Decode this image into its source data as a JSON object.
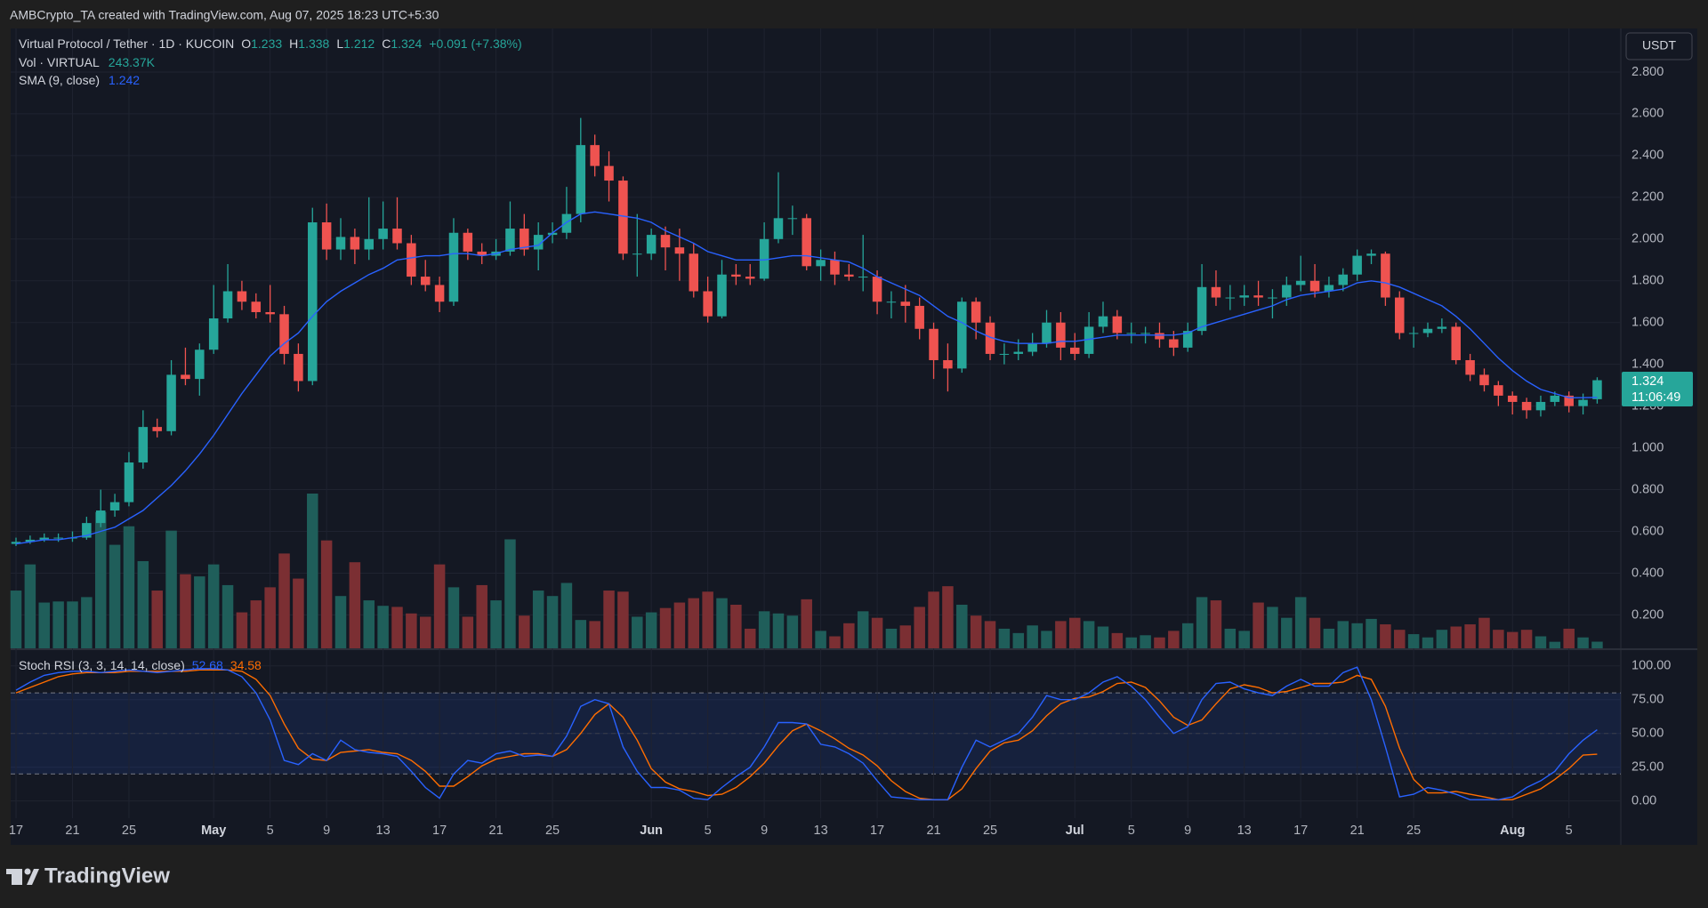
{
  "header": "AMBCrypto_TA created with TradingView.com, Aug 07, 2025 18:23 UTC+5:30",
  "footer": "TradingView",
  "chart_data": {
    "type": "candlestick",
    "legend": {
      "symbol": "Virtual Protocol / Tether · 1D · KUCOIN",
      "o": "O",
      "h": "H",
      "l": "L",
      "c": "C",
      "change": "+0.091 (+7.38%)",
      "vol": "Vol · VIRTUAL",
      "vol_value": "243.37K",
      "sma": "SMA (9, close)",
      "stoch": "Stoch RSI (3, 3, 14, 14, close)"
    },
    "currency": "USDT",
    "countdown": "11:06:49",
    "colors": {
      "up": "#26a69a",
      "down": "#ef5350",
      "vol_up": "#1f5e5a",
      "vol_down": "#7b2f33",
      "sma": "#2962ff",
      "k": "#2962ff",
      "d": "#ff6d00"
    },
    "categories": [
      "17",
      null,
      null,
      null,
      "21",
      null,
      null,
      null,
      "25",
      null,
      null,
      null,
      null,
      null,
      "May",
      null,
      null,
      null,
      "5",
      null,
      null,
      null,
      "9",
      null,
      null,
      null,
      "13",
      null,
      null,
      null,
      "17",
      null,
      null,
      null,
      "21",
      null,
      null,
      null,
      "25",
      null,
      null,
      null,
      null,
      null,
      null,
      "Jun",
      null,
      null,
      null,
      "5",
      null,
      null,
      null,
      "9",
      null,
      null,
      null,
      "13",
      null,
      null,
      null,
      "17",
      null,
      null,
      null,
      "21",
      null,
      null,
      null,
      "25",
      null,
      null,
      null,
      null,
      null,
      "Jul",
      null,
      null,
      null,
      "5",
      null,
      null,
      null,
      "9",
      null,
      null,
      null,
      "13",
      null,
      null,
      null,
      "17",
      null,
      null,
      null,
      "21",
      null,
      null,
      null,
      "25",
      null,
      null,
      null,
      null,
      null,
      null,
      "Aug",
      null,
      null,
      null,
      "5",
      null,
      null
    ],
    "ohlc": [
      [
        0.54,
        0.57,
        0.53,
        0.55
      ],
      [
        0.55,
        0.58,
        0.54,
        0.56
      ],
      [
        0.56,
        0.59,
        0.55,
        0.57
      ],
      [
        0.57,
        0.59,
        0.55,
        0.57
      ],
      [
        0.57,
        0.6,
        0.55,
        0.57
      ],
      [
        0.57,
        0.67,
        0.56,
        0.64
      ],
      [
        0.64,
        0.8,
        0.62,
        0.7
      ],
      [
        0.7,
        0.78,
        0.67,
        0.74
      ],
      [
        0.74,
        0.98,
        0.72,
        0.93
      ],
      [
        0.93,
        1.18,
        0.9,
        1.1
      ],
      [
        1.1,
        1.14,
        1.05,
        1.08
      ],
      [
        1.08,
        1.42,
        1.06,
        1.35
      ],
      [
        1.35,
        1.48,
        1.3,
        1.33
      ],
      [
        1.33,
        1.5,
        1.25,
        1.47
      ],
      [
        1.47,
        1.78,
        1.45,
        1.62
      ],
      [
        1.62,
        1.88,
        1.6,
        1.75
      ],
      [
        1.75,
        1.8,
        1.66,
        1.7
      ],
      [
        1.7,
        1.74,
        1.62,
        1.65
      ],
      [
        1.65,
        1.78,
        1.6,
        1.64
      ],
      [
        1.64,
        1.68,
        1.4,
        1.45
      ],
      [
        1.45,
        1.5,
        1.27,
        1.32
      ],
      [
        1.32,
        2.15,
        1.3,
        2.08
      ],
      [
        2.08,
        2.17,
        1.9,
        1.95
      ],
      [
        1.95,
        2.1,
        1.9,
        2.01
      ],
      [
        2.01,
        2.05,
        1.88,
        1.95
      ],
      [
        1.95,
        2.2,
        1.9,
        2.0
      ],
      [
        2.0,
        2.18,
        1.95,
        2.05
      ],
      [
        2.05,
        2.2,
        1.95,
        1.98
      ],
      [
        1.98,
        2.02,
        1.78,
        1.82
      ],
      [
        1.82,
        1.9,
        1.75,
        1.78
      ],
      [
        1.78,
        1.82,
        1.65,
        1.7
      ],
      [
        1.7,
        2.1,
        1.68,
        2.03
      ],
      [
        2.03,
        2.05,
        1.9,
        1.94
      ],
      [
        1.94,
        1.98,
        1.88,
        1.92
      ],
      [
        1.92,
        2.0,
        1.9,
        1.94
      ],
      [
        1.94,
        2.18,
        1.92,
        2.05
      ],
      [
        2.05,
        2.12,
        1.92,
        1.95
      ],
      [
        1.95,
        2.08,
        1.85,
        2.02
      ],
      [
        2.02,
        2.08,
        1.98,
        2.03
      ],
      [
        2.03,
        2.25,
        2.0,
        2.12
      ],
      [
        2.12,
        2.58,
        2.08,
        2.45
      ],
      [
        2.45,
        2.5,
        2.3,
        2.35
      ],
      [
        2.35,
        2.42,
        2.18,
        2.28
      ],
      [
        2.28,
        2.3,
        1.9,
        1.93
      ],
      [
        1.93,
        2.12,
        1.82,
        1.93
      ],
      [
        1.93,
        2.05,
        1.9,
        2.02
      ],
      [
        2.02,
        2.06,
        1.85,
        1.96
      ],
      [
        1.96,
        2.05,
        1.8,
        1.93
      ],
      [
        1.93,
        1.98,
        1.72,
        1.75
      ],
      [
        1.75,
        1.82,
        1.6,
        1.63
      ],
      [
        1.63,
        1.9,
        1.62,
        1.83
      ],
      [
        1.83,
        1.88,
        1.78,
        1.82
      ],
      [
        1.82,
        1.88,
        1.78,
        1.81
      ],
      [
        1.81,
        2.08,
        1.8,
        2.0
      ],
      [
        2.0,
        2.32,
        1.98,
        2.1
      ],
      [
        2.1,
        2.16,
        2.02,
        2.1
      ],
      [
        2.1,
        2.12,
        1.85,
        1.87
      ],
      [
        1.87,
        1.95,
        1.8,
        1.9
      ],
      [
        1.9,
        1.94,
        1.78,
        1.83
      ],
      [
        1.83,
        1.88,
        1.8,
        1.82
      ],
      [
        1.82,
        2.02,
        1.75,
        1.82
      ],
      [
        1.82,
        1.85,
        1.64,
        1.7
      ],
      [
        1.7,
        1.75,
        1.62,
        1.7
      ],
      [
        1.7,
        1.78,
        1.6,
        1.68
      ],
      [
        1.68,
        1.72,
        1.52,
        1.57
      ],
      [
        1.57,
        1.6,
        1.33,
        1.42
      ],
      [
        1.42,
        1.5,
        1.27,
        1.38
      ],
      [
        1.38,
        1.72,
        1.36,
        1.7
      ],
      [
        1.7,
        1.72,
        1.52,
        1.6
      ],
      [
        1.6,
        1.63,
        1.42,
        1.45
      ],
      [
        1.45,
        1.5,
        1.4,
        1.45
      ],
      [
        1.45,
        1.52,
        1.42,
        1.46
      ],
      [
        1.46,
        1.55,
        1.44,
        1.5
      ],
      [
        1.5,
        1.66,
        1.48,
        1.6
      ],
      [
        1.6,
        1.65,
        1.42,
        1.48
      ],
      [
        1.48,
        1.55,
        1.42,
        1.45
      ],
      [
        1.45,
        1.65,
        1.43,
        1.58
      ],
      [
        1.58,
        1.7,
        1.55,
        1.63
      ],
      [
        1.63,
        1.66,
        1.52,
        1.55
      ],
      [
        1.55,
        1.6,
        1.5,
        1.55
      ],
      [
        1.55,
        1.58,
        1.5,
        1.55
      ],
      [
        1.55,
        1.6,
        1.48,
        1.52
      ],
      [
        1.52,
        1.56,
        1.44,
        1.48
      ],
      [
        1.48,
        1.6,
        1.46,
        1.56
      ],
      [
        1.56,
        1.88,
        1.54,
        1.77
      ],
      [
        1.77,
        1.85,
        1.68,
        1.72
      ],
      [
        1.72,
        1.78,
        1.66,
        1.72
      ],
      [
        1.72,
        1.78,
        1.68,
        1.73
      ],
      [
        1.73,
        1.8,
        1.68,
        1.72
      ],
      [
        1.72,
        1.76,
        1.62,
        1.72
      ],
      [
        1.72,
        1.82,
        1.68,
        1.78
      ],
      [
        1.78,
        1.92,
        1.75,
        1.8
      ],
      [
        1.8,
        1.88,
        1.72,
        1.75
      ],
      [
        1.75,
        1.82,
        1.72,
        1.78
      ],
      [
        1.78,
        1.86,
        1.75,
        1.83
      ],
      [
        1.83,
        1.95,
        1.8,
        1.92
      ],
      [
        1.92,
        1.95,
        1.88,
        1.93
      ],
      [
        1.93,
        1.94,
        1.68,
        1.72
      ],
      [
        1.72,
        1.75,
        1.52,
        1.55
      ],
      [
        1.55,
        1.58,
        1.48,
        1.55
      ],
      [
        1.55,
        1.6,
        1.53,
        1.57
      ],
      [
        1.57,
        1.62,
        1.55,
        1.58
      ],
      [
        1.58,
        1.6,
        1.4,
        1.42
      ],
      [
        1.42,
        1.45,
        1.32,
        1.35
      ],
      [
        1.35,
        1.38,
        1.27,
        1.3
      ],
      [
        1.3,
        1.32,
        1.2,
        1.25
      ],
      [
        1.25,
        1.27,
        1.16,
        1.22
      ],
      [
        1.22,
        1.24,
        1.14,
        1.18
      ],
      [
        1.18,
        1.25,
        1.15,
        1.22
      ],
      [
        1.22,
        1.27,
        1.2,
        1.25
      ],
      [
        1.25,
        1.27,
        1.17,
        1.2
      ],
      [
        1.2,
        1.26,
        1.16,
        1.23
      ],
      [
        1.233,
        1.338,
        1.212,
        1.324
      ]
    ],
    "volume": [
      2120,
      3080,
      1680,
      1720,
      1720,
      1880,
      5000,
      3800,
      4480,
      3200,
      2120,
      4320,
      2720,
      2640,
      3080,
      2320,
      1320,
      1760,
      2240,
      3480,
      2560,
      5680,
      3960,
      1920,
      3160,
      1760,
      1560,
      1520,
      1280,
      1160,
      3080,
      2240,
      1160,
      2320,
      1760,
      4000,
      1200,
      2120,
      1920,
      2400,
      1040,
      1000,
      2120,
      2080,
      1160,
      1320,
      1480,
      1680,
      1840,
      2080,
      1840,
      1600,
      720,
      1360,
      1280,
      1200,
      1800,
      640,
      440,
      920,
      1360,
      1120,
      720,
      840,
      1520,
      2080,
      2280,
      1600,
      1200,
      1000,
      720,
      560,
      840,
      640,
      1000,
      1120,
      1000,
      800,
      560,
      400,
      480,
      400,
      640,
      920,
      1880,
      1760,
      720,
      640,
      1680,
      1520,
      1120,
      1880,
      1120,
      720,
      1000,
      920,
      1080,
      880,
      680,
      520,
      400,
      680,
      800,
      880,
      1120,
      680,
      600,
      680,
      440,
      240,
      720,
      400,
      243.37
    ],
    "sma": [
      0.54,
      0.55,
      0.56,
      0.56,
      0.57,
      0.58,
      0.6,
      0.62,
      0.66,
      0.7,
      0.76,
      0.82,
      0.89,
      0.97,
      1.06,
      1.16,
      1.26,
      1.35,
      1.44,
      1.5,
      1.55,
      1.63,
      1.7,
      1.75,
      1.79,
      1.83,
      1.86,
      1.9,
      1.91,
      1.92,
      1.92,
      1.93,
      1.93,
      1.92,
      1.93,
      1.95,
      1.96,
      1.97,
      2.03,
      2.08,
      2.12,
      2.13,
      2.12,
      2.11,
      2.1,
      2.08,
      2.04,
      2.01,
      1.98,
      1.94,
      1.92,
      1.9,
      1.9,
      1.9,
      1.91,
      1.92,
      1.92,
      1.91,
      1.9,
      1.89,
      1.86,
      1.82,
      1.79,
      1.76,
      1.73,
      1.68,
      1.63,
      1.6,
      1.56,
      1.53,
      1.51,
      1.5,
      1.5,
      1.5,
      1.51,
      1.51,
      1.52,
      1.53,
      1.54,
      1.54,
      1.54,
      1.54,
      1.54,
      1.55,
      1.58,
      1.6,
      1.62,
      1.64,
      1.66,
      1.68,
      1.71,
      1.73,
      1.74,
      1.75,
      1.76,
      1.79,
      1.8,
      1.79,
      1.77,
      1.74,
      1.71,
      1.68,
      1.63,
      1.57,
      1.5,
      1.43,
      1.37,
      1.32,
      1.28,
      1.26,
      1.24,
      1.24,
      1.242
    ],
    "stoch_k": [
      82,
      88,
      93,
      95,
      96,
      96,
      95,
      96,
      97,
      96,
      95,
      96,
      97,
      98,
      98,
      97,
      92,
      80,
      60,
      30,
      27,
      35,
      30,
      45,
      38,
      36,
      35,
      33,
      22,
      10,
      2,
      20,
      30,
      28,
      35,
      37,
      33,
      34,
      33,
      48,
      70,
      75,
      72,
      40,
      22,
      10,
      10,
      8,
      2,
      1,
      10,
      18,
      25,
      40,
      58,
      58,
      57,
      42,
      40,
      35,
      28,
      15,
      3,
      2,
      1,
      1,
      1,
      25,
      45,
      40,
      45,
      50,
      62,
      78,
      75,
      75,
      80,
      88,
      92,
      85,
      75,
      62,
      50,
      55,
      75,
      87,
      88,
      83,
      80,
      78,
      85,
      90,
      85,
      85,
      95,
      99,
      75,
      40,
      3,
      5,
      10,
      8,
      5,
      1,
      1,
      1,
      3,
      10,
      15,
      22,
      35,
      45,
      52.68
    ],
    "stoch_d": [
      80,
      84,
      88,
      92,
      94,
      95,
      95,
      95,
      96,
      96,
      96,
      96,
      96,
      97,
      97,
      97,
      96,
      90,
      78,
      57,
      39,
      31,
      30,
      36,
      37,
      38,
      36,
      35,
      30,
      22,
      11,
      11,
      18,
      26,
      31,
      33,
      35,
      35,
      33,
      38,
      50,
      64,
      72,
      62,
      45,
      24,
      14,
      9,
      7,
      4,
      5,
      10,
      18,
      28,
      41,
      52,
      57,
      52,
      46,
      39,
      34,
      26,
      15,
      7,
      2,
      1,
      1,
      9,
      24,
      37,
      43,
      45,
      52,
      63,
      72,
      76,
      77,
      81,
      87,
      88,
      84,
      74,
      62,
      56,
      60,
      72,
      83,
      86,
      84,
      80,
      81,
      84,
      87,
      87,
      88,
      93,
      90,
      70,
      39,
      16,
      6,
      6,
      7,
      5,
      3,
      1,
      1,
      5,
      9,
      16,
      24,
      34,
      34.58
    ],
    "ylim": [
      0.04,
      3.0
    ],
    "yticks": [
      {
        "value": 2.8,
        "label": "2.800"
      },
      {
        "value": 2.6,
        "label": "2.600"
      },
      {
        "value": 2.4,
        "label": "2.400"
      },
      {
        "value": 2.2,
        "label": "2.200"
      },
      {
        "value": 2.0,
        "label": "2.000"
      },
      {
        "value": 1.8,
        "label": "1.800"
      },
      {
        "value": 1.6,
        "label": "1.600"
      },
      {
        "value": 1.4,
        "label": "1.400"
      },
      {
        "value": 1.2,
        "label": "1.200"
      },
      {
        "value": 1.0,
        "label": "1.000"
      },
      {
        "value": 0.8,
        "label": "0.800"
      },
      {
        "value": 0.6,
        "label": "0.600"
      },
      {
        "value": 0.4,
        "label": "0.400"
      },
      {
        "value": 0.2,
        "label": "0.200"
      }
    ],
    "stoch_ylim": [
      -16,
      111
    ],
    "stoch_yticks": [
      {
        "value": 100,
        "label": "100.00"
      },
      {
        "value": 75,
        "label": "75.00"
      },
      {
        "value": 50,
        "label": "50.00"
      },
      {
        "value": 25,
        "label": "25.00"
      },
      {
        "value": 0,
        "label": "0.00"
      }
    ],
    "stoch_bands": [
      20,
      80
    ],
    "grid": true
  }
}
